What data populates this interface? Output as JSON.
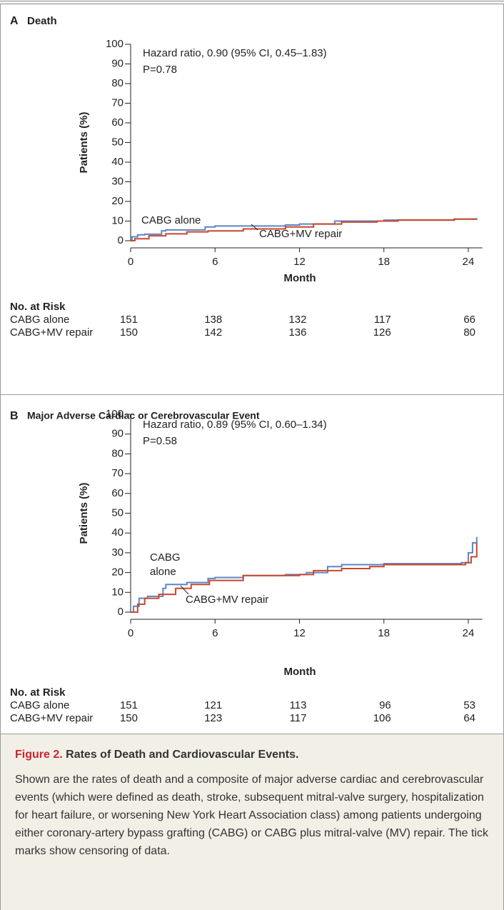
{
  "chart_data": [
    {
      "type": "line",
      "steps": true,
      "panel": "A",
      "title": "Death",
      "xlabel": "Month",
      "ylabel": "Patients (%)",
      "xlim": [
        0,
        25
      ],
      "ylim": [
        0,
        100
      ],
      "xticks": [
        0,
        6,
        12,
        18,
        24
      ],
      "yticks": [
        0,
        10,
        20,
        30,
        40,
        50,
        60,
        70,
        80,
        90,
        100
      ],
      "annotations": [
        "Hazard ratio, 0.90 (95% CI, 0.45–1.83)",
        "P=0.78"
      ],
      "line_labels": [
        "CABG alone",
        "CABG+MV repair"
      ],
      "series": [
        {
          "name": "CABG alone",
          "color": "#5b86c8",
          "x": [
            0,
            0.1,
            0.5,
            1.0,
            2.2,
            2.5,
            5.3,
            6,
            11,
            12,
            14.5,
            18,
            23,
            24.6
          ],
          "values": [
            0,
            2,
            3,
            3.3,
            5,
            5.5,
            7,
            7.5,
            8,
            8.5,
            10,
            10.5,
            11,
            11.5
          ]
        },
        {
          "name": "CABG+MV repair",
          "color": "#c8472b",
          "x": [
            0,
            0.3,
            1.3,
            2.5,
            4,
            5.5,
            8,
            11,
            13,
            15,
            17.5,
            19,
            23,
            24.6
          ],
          "values": [
            0,
            1,
            2.5,
            3.5,
            4.5,
            5,
            6,
            7,
            8.5,
            9.5,
            10,
            10.5,
            11,
            11
          ]
        }
      ],
      "risk_table": {
        "title": "No. at Risk",
        "rows": [
          [
            151,
            138,
            132,
            117,
            66
          ],
          [
            150,
            142,
            136,
            126,
            80
          ]
        ]
      }
    },
    {
      "type": "line",
      "steps": true,
      "panel": "B",
      "title": "Major Adverse Cardiac or Cerebrovascular Event",
      "xlabel": "Month",
      "ylabel": "Patients (%)",
      "xlim": [
        0,
        25
      ],
      "ylim": [
        0,
        100
      ],
      "xticks": [
        0,
        6,
        12,
        18,
        24
      ],
      "yticks": [
        0,
        10,
        20,
        30,
        40,
        50,
        60,
        70,
        80,
        90,
        100
      ],
      "annotations": [
        "Hazard ratio, 0.89 (95% CI, 0.60–1.34)",
        "P=0.58"
      ],
      "line_labels": [
        "CABG",
        "alone",
        "CABG+MV repair"
      ],
      "series": [
        {
          "name": "CABG alone",
          "color": "#5b86c8",
          "x": [
            0,
            0.2,
            0.6,
            1.2,
            2.3,
            2.5,
            4,
            5.5,
            6,
            8,
            11,
            12.5,
            14,
            15,
            18,
            23.5,
            24,
            24.3,
            24.6
          ],
          "values": [
            0,
            3,
            7,
            8,
            12,
            14,
            15,
            17,
            17.5,
            18.5,
            19,
            20,
            23,
            24,
            24.5,
            25,
            30,
            35,
            38
          ]
        },
        {
          "name": "CABG+MV repair",
          "color": "#c8472b",
          "x": [
            0,
            0.5,
            1,
            2,
            3.2,
            4.3,
            5.6,
            8,
            12,
            13,
            15,
            17,
            18,
            23.8,
            24.2,
            24.6
          ],
          "values": [
            0,
            4,
            7,
            9,
            12,
            14,
            16,
            18.5,
            19,
            21,
            22,
            23,
            24,
            25,
            28,
            35
          ]
        }
      ],
      "risk_table": {
        "title": "No. at Risk",
        "rows": [
          [
            151,
            121,
            113,
            96,
            53
          ],
          [
            150,
            123,
            117,
            106,
            64
          ]
        ]
      }
    }
  ],
  "caption": {
    "label": "Figure 2.",
    "title": "Rates of Death and Cardiovascular Events.",
    "text": "Shown are the rates of death and a composite of major adverse cardiac and cerebrovascular events (which were defined as death, stroke, subsequent mitral-valve surgery, hospitalization for heart failure, or worsening New York Heart Association class) among patients undergoing either coronary-artery bypass grafting (CABG) or CABG plus mitral-valve (MV) repair. The tick marks show censoring of data."
  }
}
